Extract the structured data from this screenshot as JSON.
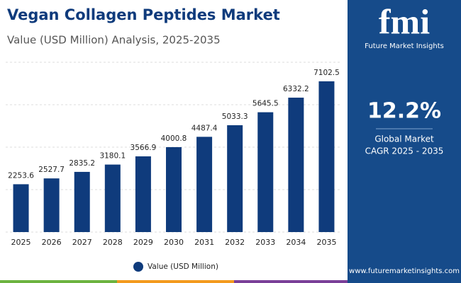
{
  "chart_data": {
    "type": "bar",
    "title": "Vegan Collagen Peptides Market",
    "subtitle": "Value (USD Million) Analysis, 2025-2035",
    "categories": [
      "2025",
      "2026",
      "2027",
      "2028",
      "2029",
      "2030",
      "2031",
      "2032",
      "2033",
      "2034",
      "2035"
    ],
    "series": [
      {
        "name": "Value (USD Million)",
        "color": "#0f3b7c",
        "values": [
          2253.6,
          2527.7,
          2835.2,
          3180.1,
          3566.9,
          4000.8,
          4487.4,
          5033.3,
          5645.5,
          6332.2,
          7102.5
        ]
      }
    ],
    "ylim": [
      0,
      8000
    ],
    "yticks": [
      0,
      2000,
      4000,
      6000,
      8000
    ],
    "grid": true,
    "legend": "bottom"
  },
  "panel": {
    "logo": "fmi",
    "brand": "Future Market Insights",
    "cagr": "12.2%",
    "cagr_label": [
      "Global Market",
      "CAGR 2025 - 2035"
    ],
    "url": "www.futuremarketinsights.com"
  }
}
